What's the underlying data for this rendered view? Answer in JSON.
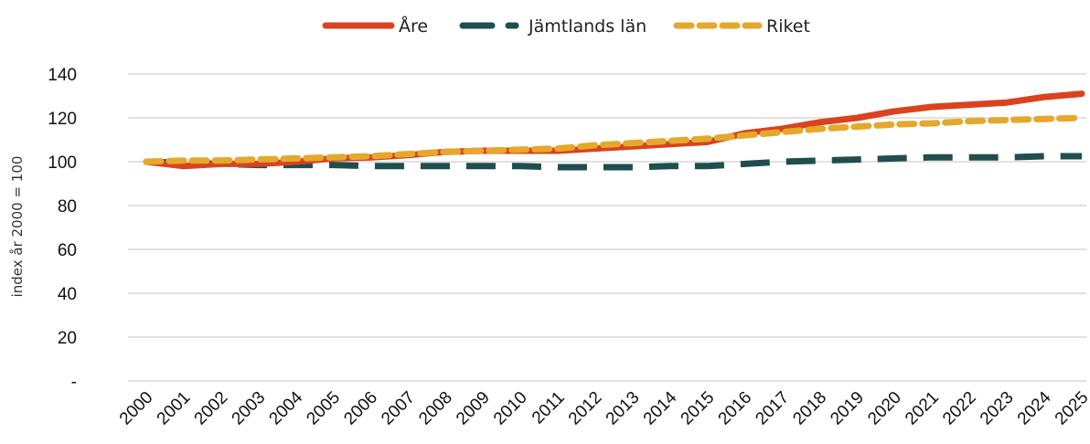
{
  "chart_data": {
    "type": "line",
    "title": "",
    "xlabel": "",
    "ylabel": "index år 2000 = 100",
    "categories": [
      "2000",
      "2001",
      "2002",
      "2003",
      "2004",
      "2005",
      "2006",
      "2007",
      "2008",
      "2009",
      "2010",
      "2011",
      "2012",
      "2013",
      "2014",
      "2015",
      "2016",
      "2017",
      "2018",
      "2019",
      "2020",
      "2021",
      "2022",
      "2023",
      "2024",
      "2025"
    ],
    "ylim": [
      0,
      140
    ],
    "yticks": [
      0,
      20,
      40,
      60,
      80,
      100,
      120,
      140
    ],
    "ytick_labels": [
      "-",
      "20",
      "40",
      "60",
      "80",
      "100",
      "120",
      "140"
    ],
    "grid": true,
    "legend_position": "top-center",
    "series": [
      {
        "name": "Åre",
        "color": "#D9431E",
        "style": "solid",
        "values": [
          100,
          98,
          99,
          99,
          100,
          101.5,
          102,
          103,
          104.5,
          105,
          105,
          105,
          106,
          107,
          108,
          109,
          113,
          115,
          118,
          120,
          123,
          125,
          126,
          127,
          129.5,
          131
        ]
      },
      {
        "name": "Jämtlands län",
        "color": "#1F4E4E",
        "style": "long-dash",
        "values": [
          100,
          99.5,
          99,
          98.5,
          98.5,
          98.5,
          98,
          98,
          98,
          98,
          98,
          97.5,
          97.5,
          97.5,
          98,
          98,
          99,
          100,
          100.5,
          101,
          101.5,
          102,
          102,
          102,
          102.5,
          102.5
        ]
      },
      {
        "name": "Riket",
        "color": "#E5A82B",
        "style": "short-dash",
        "values": [
          100,
          100.5,
          100.5,
          101,
          101.5,
          102,
          102.5,
          103.5,
          104.5,
          105,
          105.5,
          106,
          107.5,
          108.5,
          109.5,
          110.5,
          112,
          113.5,
          115,
          116,
          117,
          117.5,
          118.5,
          119,
          119.5,
          120
        ]
      }
    ]
  }
}
